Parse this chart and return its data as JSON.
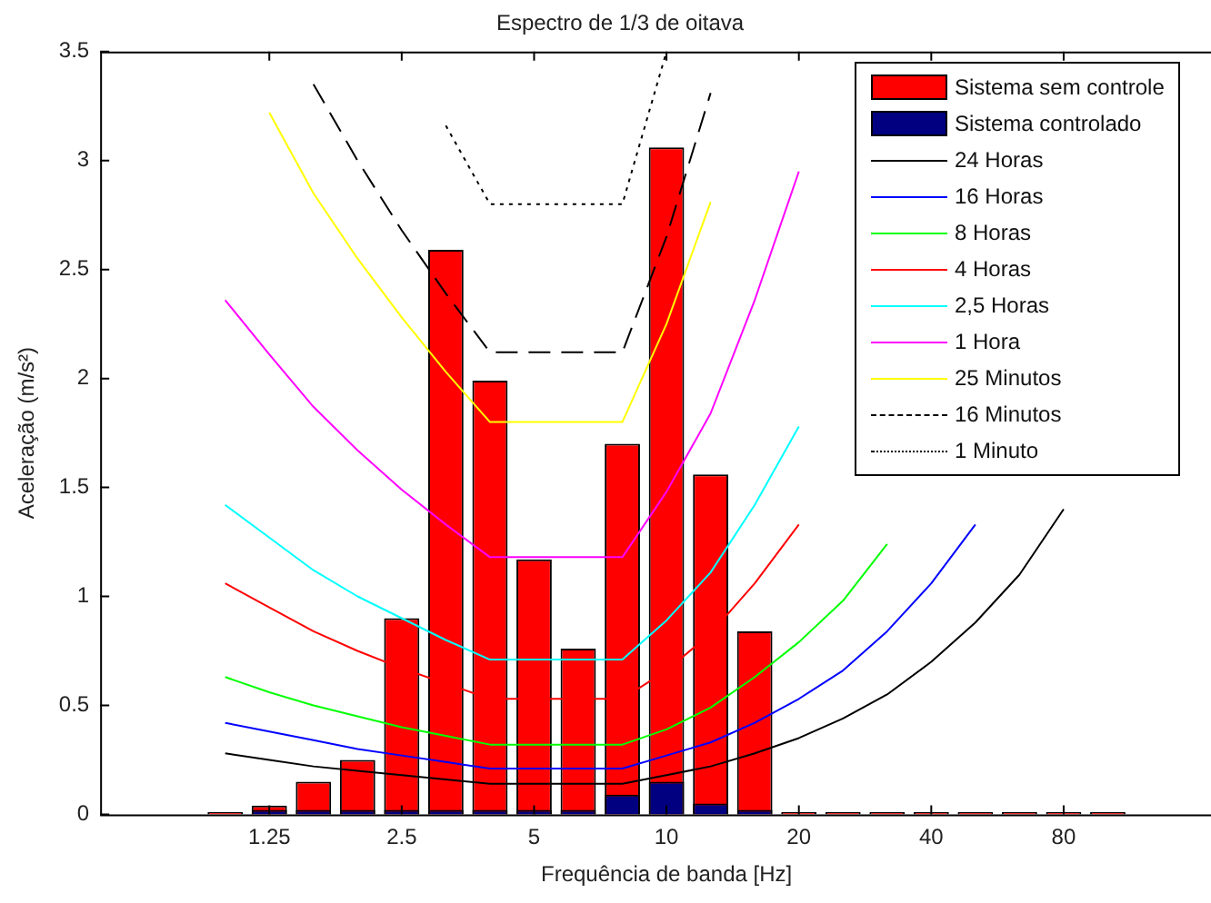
{
  "chart_data": {
    "type": "bar",
    "title": "Espectro de 1/3 de oitava",
    "xlabel": "Frequência de banda [Hz]",
    "ylabel": "Aceleração (m/s²)",
    "categories": [
      null,
      "1.25",
      null,
      null,
      "2.5",
      null,
      null,
      "5",
      null,
      null,
      "10",
      null,
      null,
      "20",
      null,
      null,
      "40",
      null,
      null,
      "80",
      null
    ],
    "series": [
      {
        "name": "Sistema sem controle",
        "color": "#ff0000",
        "values": [
          0.01,
          0.04,
          0.15,
          0.25,
          0.9,
          2.59,
          1.99,
          1.17,
          0.76,
          1.7,
          3.06,
          1.56,
          0.84,
          0.01,
          0.01,
          0.01,
          0.01,
          0.01,
          0.01,
          0.01,
          0.01
        ]
      },
      {
        "name": "Sistema controlado",
        "color": "#000080",
        "values": [
          0,
          0.02,
          0.02,
          0.02,
          0.02,
          0.02,
          0.02,
          0.02,
          0.02,
          0.09,
          0.15,
          0.05,
          0.02,
          0,
          0,
          0,
          0,
          0,
          0,
          0,
          0
        ]
      },
      {
        "name": "24 Horas",
        "type": "line",
        "color": "#000000",
        "line_style": "solid",
        "values": [
          0.28,
          0.25,
          0.22,
          0.2,
          0.18,
          0.16,
          0.14,
          0.14,
          0.14,
          0.14,
          0.18,
          0.22,
          0.28,
          0.35,
          0.44,
          0.55,
          0.7,
          0.88,
          1.1,
          1.4,
          null
        ]
      },
      {
        "name": "16 Horas",
        "type": "line",
        "color": "#0000ff",
        "line_style": "solid",
        "values": [
          0.42,
          0.38,
          0.34,
          0.3,
          0.27,
          0.24,
          0.21,
          0.21,
          0.21,
          0.21,
          0.27,
          0.33,
          0.42,
          0.53,
          0.66,
          0.84,
          1.06,
          1.33,
          null,
          null,
          null
        ]
      },
      {
        "name": "8 Horas",
        "type": "line",
        "color": "#00ff00",
        "line_style": "solid",
        "values": [
          0.63,
          0.56,
          0.5,
          0.45,
          0.4,
          0.36,
          0.32,
          0.32,
          0.32,
          0.32,
          0.39,
          0.49,
          0.63,
          0.79,
          0.98,
          1.24,
          null,
          null,
          null,
          null,
          null
        ]
      },
      {
        "name": "4 Horas",
        "type": "line",
        "color": "#ff0000",
        "line_style": "solid",
        "values": [
          1.06,
          0.95,
          0.84,
          0.75,
          0.67,
          0.6,
          0.53,
          0.53,
          0.53,
          0.53,
          0.66,
          0.83,
          1.06,
          1.33,
          null,
          null,
          null,
          null,
          null,
          null,
          null
        ]
      },
      {
        "name": "2,5 Horas",
        "type": "line",
        "color": "#00ffff",
        "line_style": "solid",
        "values": [
          1.42,
          1.27,
          1.12,
          1.0,
          0.9,
          0.8,
          0.71,
          0.71,
          0.71,
          0.71,
          0.89,
          1.11,
          1.42,
          1.78,
          null,
          null,
          null,
          null,
          null,
          null,
          null
        ]
      },
      {
        "name": "1 Hora",
        "type": "line",
        "color": "#ff00ff",
        "line_style": "solid",
        "values": [
          2.36,
          2.11,
          1.87,
          1.67,
          1.49,
          1.33,
          1.18,
          1.18,
          1.18,
          1.18,
          1.48,
          1.84,
          2.36,
          2.95,
          null,
          null,
          null,
          null,
          null,
          null,
          null
        ]
      },
      {
        "name": "25 Minutos",
        "type": "line",
        "color": "#ffff00",
        "line_style": "solid",
        "values": [
          null,
          3.22,
          2.85,
          2.55,
          2.28,
          2.03,
          1.8,
          1.8,
          1.8,
          1.8,
          2.25,
          2.81,
          null,
          null,
          null,
          null,
          null,
          null,
          null,
          null,
          null
        ]
      },
      {
        "name": "16 Minutos",
        "type": "line",
        "color": "#000000",
        "line_style": "dashed",
        "values": [
          null,
          null,
          3.35,
          3.0,
          2.68,
          2.39,
          2.12,
          2.12,
          2.12,
          2.12,
          2.65,
          3.31,
          null,
          null,
          null,
          null,
          null,
          null,
          null,
          null,
          null
        ]
      },
      {
        "name": "1 Minuto",
        "type": "line",
        "color": "#000000",
        "line_style": "dotted",
        "values": [
          null,
          null,
          null,
          null,
          null,
          3.16,
          2.8,
          2.8,
          2.8,
          2.8,
          3.5,
          null,
          null,
          null,
          null,
          null,
          null,
          null,
          null,
          null,
          null
        ]
      }
    ],
    "ylim": [
      0,
      3.5
    ],
    "yticks": [
      0,
      0.5,
      1,
      1.5,
      2,
      2.5,
      3,
      3.5
    ],
    "legend": "top right",
    "marker": "none"
  }
}
